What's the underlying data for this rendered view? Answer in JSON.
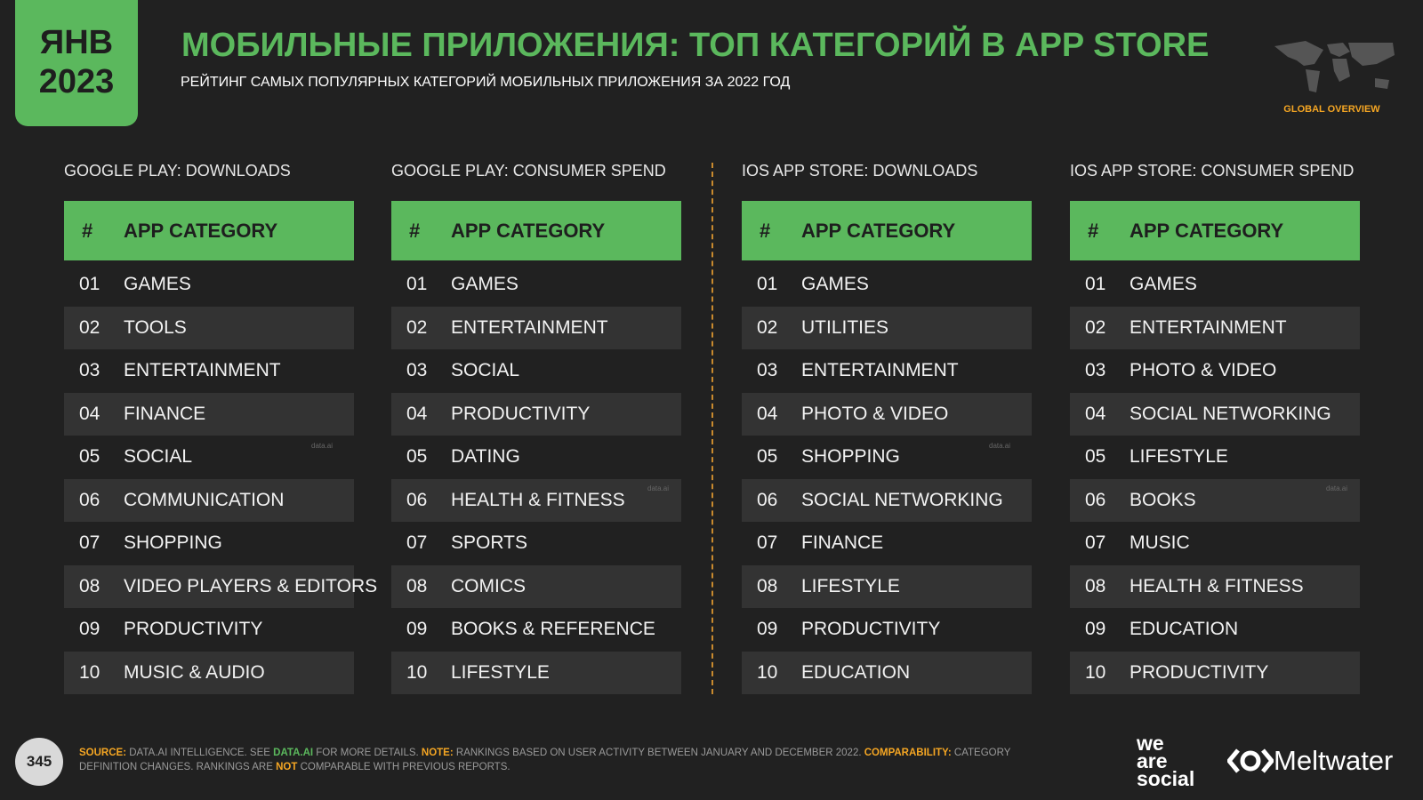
{
  "header": {
    "badge": [
      "ЯНВ",
      "2023"
    ],
    "title": "МОБИЛЬНЫЕ ПРИЛОЖЕНИЯ: ТОП КАТЕГОРИЙ В APP STORE",
    "subtitle": "РЕЙТИНГ САМЫХ ПОПУЛЯРНЫХ КАТЕГОРИЙ МОБИЛЬНЫХ ПРИЛОЖЕНИЯ ЗА 2022 ГОД",
    "section": "GLOBAL OVERVIEW"
  },
  "tables": [
    {
      "title": "GOOGLE PLAY: DOWNLOADS",
      "columns": [
        "#",
        "APP CATEGORY"
      ],
      "watermark": "data.ai",
      "rows": [
        [
          "01",
          "GAMES"
        ],
        [
          "02",
          "TOOLS"
        ],
        [
          "03",
          "ENTERTAINMENT"
        ],
        [
          "04",
          "FINANCE"
        ],
        [
          "05",
          "SOCIAL"
        ],
        [
          "06",
          "COMMUNICATION"
        ],
        [
          "07",
          "SHOPPING"
        ],
        [
          "08",
          "VIDEO PLAYERS & EDITORS"
        ],
        [
          "09",
          "PRODUCTIVITY"
        ],
        [
          "10",
          "MUSIC & AUDIO"
        ]
      ]
    },
    {
      "title": "GOOGLE PLAY: CONSUMER SPEND",
      "columns": [
        "#",
        "APP CATEGORY"
      ],
      "watermark": "data.ai",
      "rows": [
        [
          "01",
          "GAMES"
        ],
        [
          "02",
          "ENTERTAINMENT"
        ],
        [
          "03",
          "SOCIAL"
        ],
        [
          "04",
          "PRODUCTIVITY"
        ],
        [
          "05",
          "DATING"
        ],
        [
          "06",
          "HEALTH & FITNESS"
        ],
        [
          "07",
          "SPORTS"
        ],
        [
          "08",
          "COMICS"
        ],
        [
          "09",
          "BOOKS & REFERENCE"
        ],
        [
          "10",
          "LIFESTYLE"
        ]
      ]
    },
    {
      "title": "IOS APP STORE: DOWNLOADS",
      "columns": [
        "#",
        "APP CATEGORY"
      ],
      "watermark": "data.ai",
      "rows": [
        [
          "01",
          "GAMES"
        ],
        [
          "02",
          "UTILITIES"
        ],
        [
          "03",
          "ENTERTAINMENT"
        ],
        [
          "04",
          "PHOTO & VIDEO"
        ],
        [
          "05",
          "SHOPPING"
        ],
        [
          "06",
          "SOCIAL NETWORKING"
        ],
        [
          "07",
          "FINANCE"
        ],
        [
          "08",
          "LIFESTYLE"
        ],
        [
          "09",
          "PRODUCTIVITY"
        ],
        [
          "10",
          "EDUCATION"
        ]
      ]
    },
    {
      "title": "IOS APP STORE: CONSUMER SPEND",
      "columns": [
        "#",
        "APP CATEGORY"
      ],
      "watermark": "data.ai",
      "rows": [
        [
          "01",
          "GAMES"
        ],
        [
          "02",
          "ENTERTAINMENT"
        ],
        [
          "03",
          "PHOTO & VIDEO"
        ],
        [
          "04",
          "SOCIAL NETWORKING"
        ],
        [
          "05",
          "LIFESTYLE"
        ],
        [
          "06",
          "BOOKS"
        ],
        [
          "07",
          "MUSIC"
        ],
        [
          "08",
          "HEALTH & FITNESS"
        ],
        [
          "09",
          "EDUCATION"
        ],
        [
          "10",
          "PRODUCTIVITY"
        ]
      ]
    }
  ],
  "footer": {
    "page": "345",
    "segments": [
      {
        "text": "SOURCE: ",
        "color": "#f5a623"
      },
      {
        "text": "DATA.AI INTELLIGENCE. SEE ",
        "color": "#9a9a9a"
      },
      {
        "text": "DATA.AI",
        "color": "#5bb85d"
      },
      {
        "text": " FOR MORE DETAILS. ",
        "color": "#9a9a9a"
      },
      {
        "text": "NOTE: ",
        "color": "#f5a623"
      },
      {
        "text": "RANKINGS BASED ON USER ACTIVITY BETWEEN JANUARY AND DECEMBER 2022. ",
        "color": "#9a9a9a"
      },
      {
        "text": "COMPARABILITY: ",
        "color": "#f5a623"
      },
      {
        "text": "CATEGORY DEFINITION CHANGES. RANKINGS ARE ",
        "color": "#9a9a9a"
      },
      {
        "text": "NOT",
        "color": "#f5a623"
      },
      {
        "text": " COMPARABLE WITH PREVIOUS REPORTS.",
        "color": "#9a9a9a"
      }
    ],
    "logos": [
      [
        "we",
        "are",
        "social"
      ],
      "Meltwater"
    ]
  }
}
